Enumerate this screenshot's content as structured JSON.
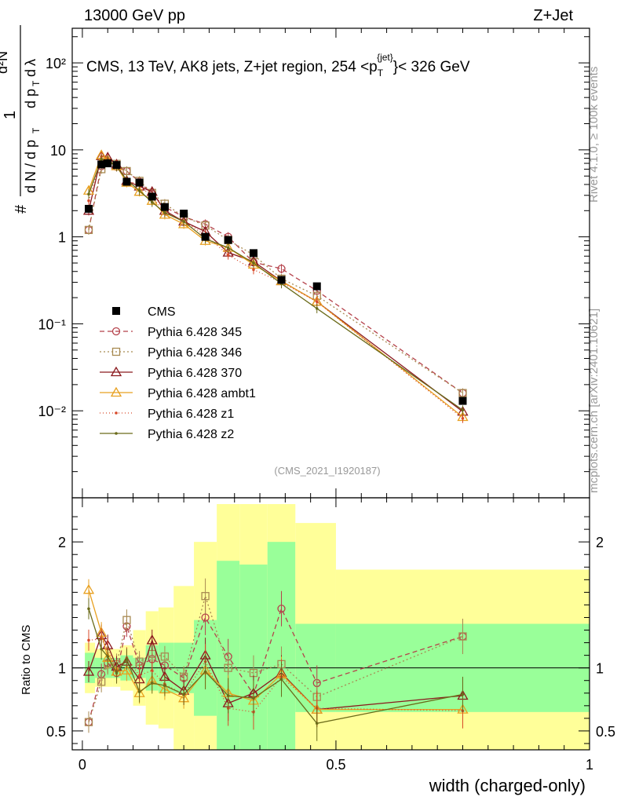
{
  "header": {
    "left": "13000 GeV pp",
    "right": "Z+Jet",
    "ref_label": "(CMS_2021_I1920187)",
    "side_top": "Rivet 4.1.0, ≥ 100k events",
    "side_bottom": "mcplots.cern.ch [arXiv:2401.10621]"
  },
  "chart_data": {
    "type": "line",
    "title": "CMS, 13 TeV, AK8 jets, Z+jet region, 254 <p_T^{jet}< 326 GeV",
    "xlabel": "width (charged-only)",
    "ylabel": "1/(dN/dp_T) d²N/(dp_T dλ)",
    "ratio_ylabel": "Ratio to CMS",
    "xlim": [
      -0.02,
      1.0
    ],
    "ylim": [
      0.001,
      250
    ],
    "ratio_ylim": [
      0.35,
      2.35
    ],
    "yscale": "log",
    "x_ticks": [
      0,
      0.5,
      1
    ],
    "x_tick_labels": [
      "0",
      "0.5",
      "1"
    ],
    "y_ticks": [
      0.01,
      0.1,
      1,
      10,
      100
    ],
    "y_tick_labels": [
      "10⁻²",
      "10⁻¹",
      "1",
      "10",
      "10²"
    ],
    "ratio_ticks": [
      0.5,
      1,
      2
    ],
    "ratio_tick_labels": [
      "0.5",
      "1",
      "2"
    ],
    "x": [
      0.0125,
      0.0375,
      0.05,
      0.0675,
      0.0875,
      0.1125,
      0.1375,
      0.1625,
      0.2,
      0.2425,
      0.2875,
      0.3375,
      0.3925,
      0.4625,
      0.75
    ],
    "bin_edges": [
      0.005,
      0.025,
      0.045,
      0.06,
      0.075,
      0.1,
      0.125,
      0.15,
      0.18,
      0.22,
      0.265,
      0.31,
      0.365,
      0.42,
      0.5,
      1.0
    ],
    "reference": {
      "name": "CMS",
      "values": [
        2.1,
        6.8,
        7.0,
        6.7,
        4.3,
        4.2,
        2.9,
        2.2,
        1.85,
        1.0,
        0.92,
        0.65,
        0.32,
        0.27,
        0.013
      ],
      "band_inner": [
        0.12,
        0.08,
        0.08,
        0.08,
        0.1,
        0.08,
        0.18,
        0.2,
        0.2,
        0.38,
        0.85,
        0.82,
        1.0,
        0.35,
        0.35
      ],
      "band_outer": [
        0.2,
        0.15,
        0.15,
        0.15,
        0.18,
        0.3,
        0.45,
        0.48,
        0.65,
        1.0,
        1.3,
        1.3,
        1.3,
        1.15,
        0.78
      ]
    },
    "series": [
      {
        "name": "Pythia 6.428 345",
        "color": "#b5424b",
        "dash": "6,4",
        "marker": "circle",
        "values": [
          1.2,
          6.5,
          7.3,
          6.4,
          5.7,
          4.3,
          3.1,
          2.2,
          1.7,
          1.4,
          1.0,
          0.51,
          0.43,
          0.24,
          0.016
        ],
        "ratio": [
          0.57,
          0.95,
          1.04,
          0.96,
          1.33,
          1.02,
          1.07,
          1.02,
          0.92,
          1.4,
          1.09,
          0.79,
          1.47,
          0.88,
          1.25
        ]
      },
      {
        "name": "Pythia 6.428 346",
        "color": "#a88a52",
        "dash": "2,3",
        "marker": "square",
        "values": [
          1.2,
          6.0,
          7.2,
          6.9,
          5.7,
          4.4,
          3.2,
          2.4,
          1.7,
          1.35,
          0.92,
          0.62,
          0.33,
          0.21,
          0.016
        ],
        "ratio": [
          0.57,
          0.89,
          1.03,
          1.03,
          1.38,
          1.05,
          1.11,
          1.09,
          0.93,
          1.57,
          1.0,
          0.96,
          1.03,
          0.77,
          1.25
        ]
      },
      {
        "name": "Pythia 6.428 370",
        "color": "#8b1a1f",
        "dash": "",
        "marker": "triangle",
        "values": [
          2.0,
          8.5,
          8.2,
          6.8,
          4.4,
          3.8,
          3.3,
          2.0,
          1.5,
          1.15,
          0.66,
          0.52,
          0.31,
          0.18,
          0.0098
        ],
        "ratio": [
          0.97,
          1.26,
          1.18,
          1.01,
          1.05,
          0.91,
          1.22,
          0.93,
          0.82,
          1.1,
          0.72,
          0.8,
          0.96,
          0.67,
          0.78
        ]
      },
      {
        "name": "Pythia 6.428 ambt1",
        "color": "#e8a020",
        "dash": "",
        "marker": "triangle",
        "values": [
          3.4,
          8.7,
          7.6,
          6.5,
          4.2,
          3.3,
          2.6,
          1.8,
          1.4,
          0.9,
          0.75,
          0.48,
          0.31,
          0.18,
          0.0085
        ],
        "ratio": [
          1.62,
          1.28,
          1.08,
          0.97,
          0.98,
          0.8,
          0.9,
          0.83,
          0.76,
          0.98,
          0.8,
          0.74,
          0.95,
          0.67,
          0.67
        ]
      },
      {
        "name": "Pythia 6.428 z1",
        "color": "#d84a2a",
        "dash": "1,3",
        "marker": "dot",
        "values": [
          2.6,
          8.4,
          7.9,
          6.6,
          4.5,
          3.9,
          2.9,
          1.9,
          1.5,
          1.05,
          0.62,
          0.42,
          0.3,
          0.18,
          0.0082
        ],
        "ratio": [
          1.22,
          1.23,
          1.15,
          0.98,
          1.08,
          0.94,
          0.98,
          0.87,
          0.79,
          1.05,
          0.68,
          0.65,
          0.93,
          0.68,
          0.66
        ]
      },
      {
        "name": "Pythia 6.428 z2",
        "color": "#6b6b1a",
        "dash": "",
        "marker": "dot",
        "values": [
          3.1,
          7.8,
          7.6,
          6.4,
          4.5,
          3.4,
          2.5,
          1.9,
          1.5,
          0.95,
          0.75,
          0.5,
          0.29,
          0.15,
          0.0102
        ],
        "ratio": [
          1.47,
          1.15,
          1.09,
          0.96,
          1.07,
          0.81,
          0.88,
          0.86,
          0.79,
          0.97,
          0.78,
          0.76,
          0.91,
          0.56,
          0.79
        ]
      }
    ]
  }
}
